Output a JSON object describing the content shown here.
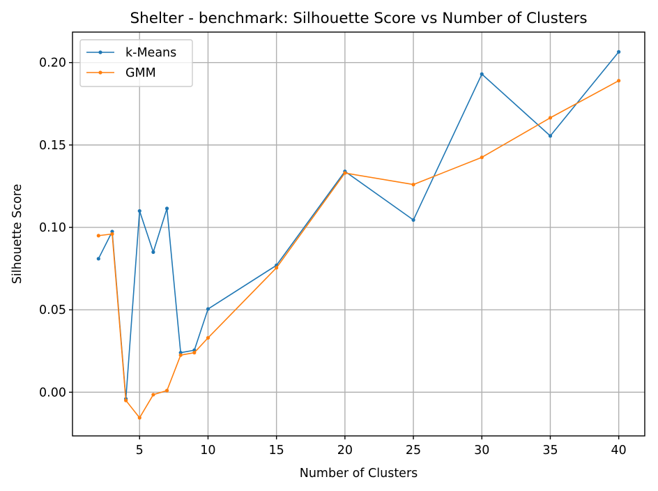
{
  "chart_data": {
    "type": "line",
    "title": "Shelter - benchmark: Silhouette Score vs Number of Clusters",
    "xlabel": "Number of Clusters",
    "ylabel": "Silhouette Score",
    "xlim": [
      0.1,
      41.9
    ],
    "ylim": [
      -0.0265,
      0.2185
    ],
    "xticks": [
      5,
      10,
      15,
      20,
      25,
      30,
      35,
      40
    ],
    "xtick_labels": [
      "5",
      "10",
      "15",
      "20",
      "25",
      "30",
      "35",
      "40"
    ],
    "yticks": [
      0.0,
      0.05,
      0.1,
      0.15,
      0.2
    ],
    "ytick_labels": [
      "0.00",
      "0.05",
      "0.10",
      "0.15",
      "0.20"
    ],
    "grid": true,
    "legend_position": "top-left",
    "x": [
      2,
      3,
      4,
      5,
      6,
      7,
      8,
      9,
      10,
      15,
      20,
      25,
      30,
      35,
      40
    ],
    "series": [
      {
        "name": "k-Means",
        "color": "#1f77b4",
        "values": [
          0.081,
          0.0975,
          -0.004,
          0.11,
          0.085,
          0.1115,
          0.024,
          0.0255,
          0.0505,
          0.077,
          0.134,
          0.1045,
          0.193,
          0.1555,
          0.2065
        ]
      },
      {
        "name": "GMM",
        "color": "#ff7f0e",
        "values": [
          0.095,
          0.096,
          -0.005,
          -0.0155,
          -0.0015,
          0.001,
          0.0225,
          0.024,
          0.033,
          0.0755,
          0.133,
          0.126,
          0.1425,
          0.1665,
          0.189
        ]
      }
    ]
  }
}
